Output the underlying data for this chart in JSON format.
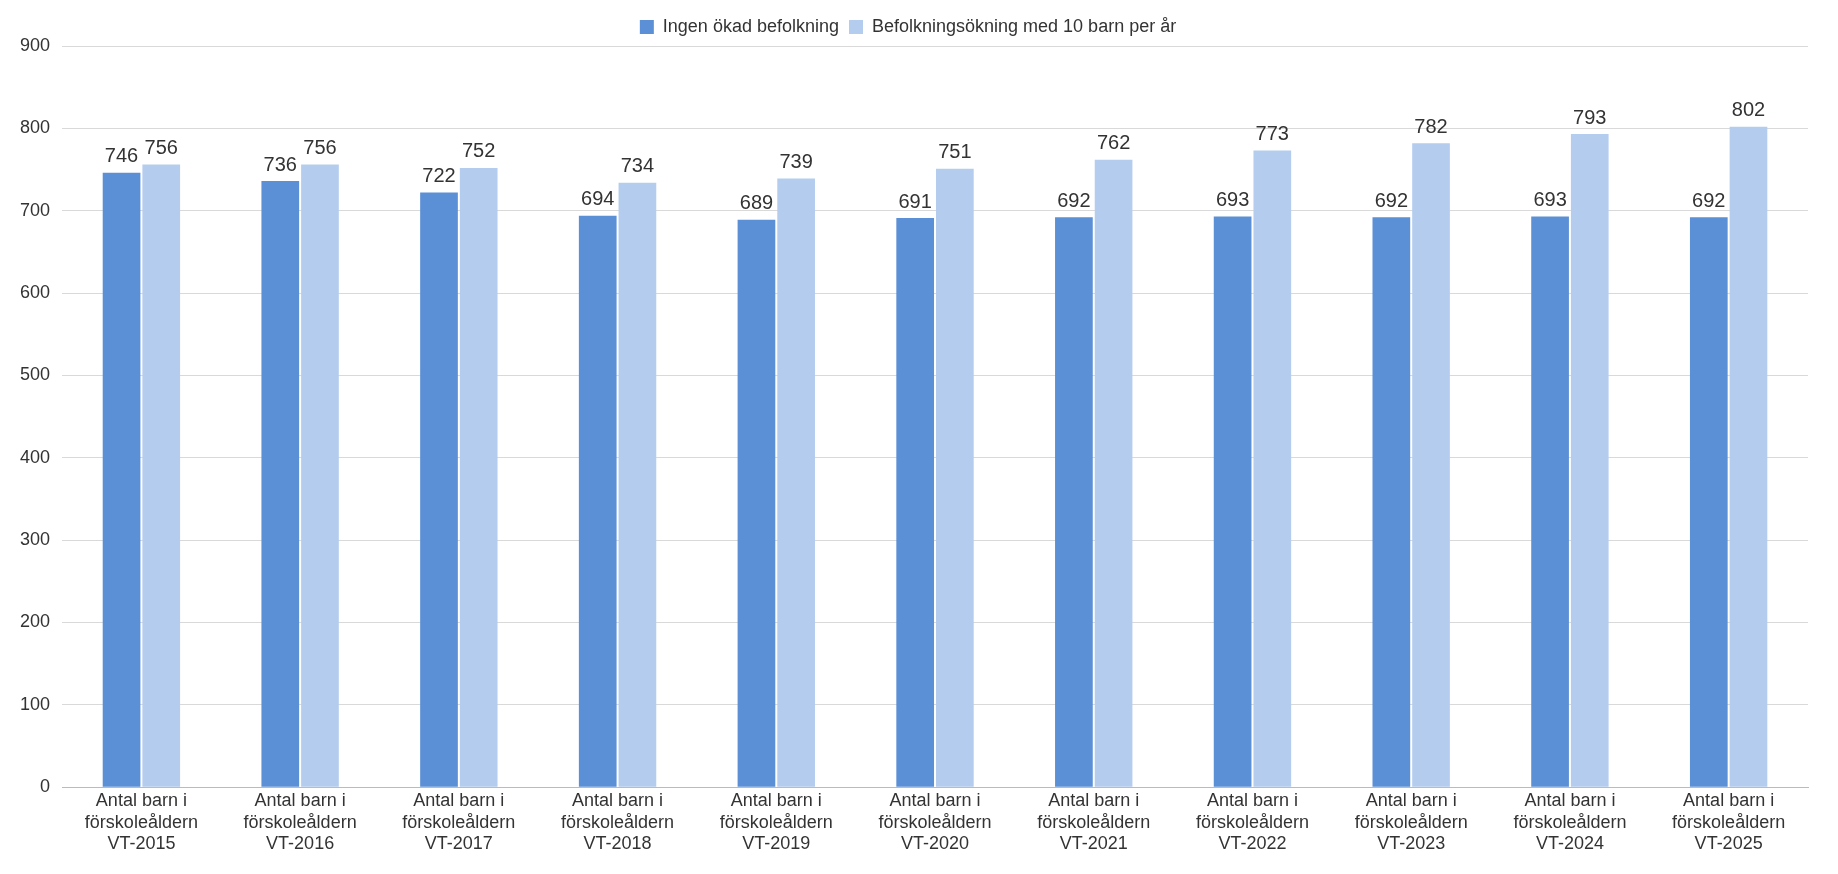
{
  "chart_data": {
    "type": "bar",
    "categories": [
      "Antal barn i förskoleåldern VT-2015",
      "Antal barn i förskoleåldern VT-2016",
      "Antal barn i förskoleåldern VT-2017",
      "Antal barn i förskoleåldern VT-2018",
      "Antal barn i förskoleåldern VT-2019",
      "Antal barn i förskoleåldern VT-2020",
      "Antal barn i förskoleåldern VT-2021",
      "Antal barn i förskoleåldern VT-2022",
      "Antal barn i förskoleåldern VT-2023",
      "Antal barn i förskoleåldern VT-2024",
      "Antal barn i förskoleåldern VT-2025"
    ],
    "series": [
      {
        "name": "Ingen ökad befolkning",
        "color": "#5b8fd6",
        "values": [
          746,
          736,
          722,
          694,
          689,
          691,
          692,
          693,
          692,
          693,
          692
        ]
      },
      {
        "name": "Befolkningsökning med 10 barn per år",
        "color": "#b4cdee",
        "values": [
          756,
          756,
          752,
          734,
          739,
          751,
          762,
          773,
          782,
          793,
          802
        ]
      }
    ],
    "ylim": [
      0,
      900
    ],
    "yticks": [
      0,
      100,
      200,
      300,
      400,
      500,
      600,
      700,
      800,
      900
    ],
    "grid": "y",
    "legend": "top",
    "data_labels": true
  }
}
